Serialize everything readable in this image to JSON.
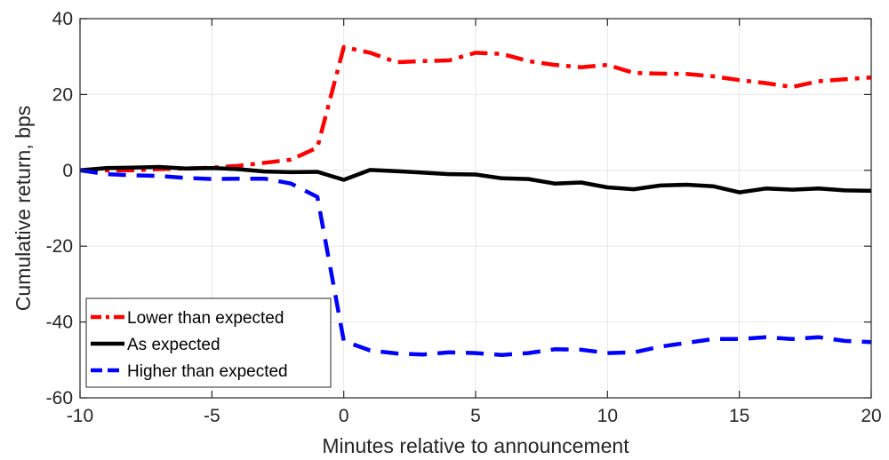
{
  "chart_data": {
    "type": "line",
    "title": "",
    "xlabel": "Minutes relative to announcement",
    "ylabel": "Cumulative return, bps",
    "xlim": [
      -10,
      20
    ],
    "ylim": [
      -60,
      40
    ],
    "xticks": [
      -10,
      -5,
      0,
      5,
      10,
      15,
      20
    ],
    "yticks": [
      -60,
      -40,
      -20,
      0,
      20,
      40
    ],
    "grid": true,
    "legend_position": "bottom-left",
    "x": [
      -10,
      -9,
      -8,
      -7,
      -6,
      -5,
      -4,
      -3,
      -2,
      -1,
      0,
      1,
      2,
      3,
      4,
      5,
      6,
      7,
      8,
      9,
      10,
      11,
      12,
      13,
      14,
      15,
      16,
      17,
      18,
      19,
      20
    ],
    "series": [
      {
        "name": "Lower than expected",
        "color": "#ff0000",
        "style": "dashdot",
        "values": [
          0,
          0,
          0,
          0.3,
          0.5,
          0.7,
          1.2,
          2.0,
          2.8,
          6.0,
          32.5,
          31.0,
          28.5,
          28.8,
          29.0,
          31.0,
          30.7,
          28.8,
          27.8,
          27.2,
          27.8,
          25.7,
          25.5,
          25.4,
          24.8,
          23.8,
          23.0,
          22.0,
          23.5,
          24.0,
          24.5
        ]
      },
      {
        "name": "As expected",
        "color": "#000000",
        "style": "solid",
        "values": [
          0,
          0.6,
          0.7,
          0.9,
          0.5,
          0.6,
          0.3,
          -0.3,
          -0.5,
          -0.4,
          -2.5,
          0.1,
          -0.2,
          -0.6,
          -1.0,
          -1.1,
          -2.1,
          -2.3,
          -3.5,
          -3.2,
          -4.5,
          -5.0,
          -4.0,
          -3.8,
          -4.2,
          -5.8,
          -4.8,
          -5.1,
          -4.8,
          -5.3,
          -5.4
        ]
      },
      {
        "name": "Higher than expected",
        "color": "#0000ff",
        "style": "dashed",
        "values": [
          0,
          -1.0,
          -1.3,
          -1.5,
          -2.0,
          -2.3,
          -2.2,
          -2.2,
          -3.5,
          -7.0,
          -45.0,
          -47.5,
          -48.3,
          -48.6,
          -48.0,
          -48.2,
          -48.7,
          -48.2,
          -47.2,
          -47.3,
          -48.2,
          -48.0,
          -46.5,
          -45.5,
          -44.5,
          -44.5,
          -44.0,
          -44.5,
          -44.0,
          -45.0,
          -45.3
        ]
      }
    ]
  }
}
